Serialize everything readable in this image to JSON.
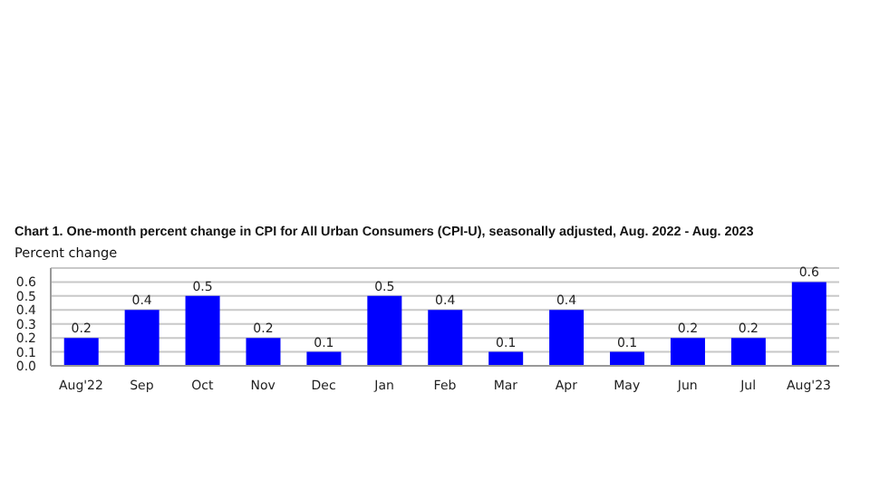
{
  "chart_data": {
    "type": "bar",
    "title": "Chart 1. One-month percent change in CPI for All Urban Consumers (CPI-U), seasonally adjusted, Aug. 2022 - Aug. 2023",
    "subtitle": "Percent change",
    "categories": [
      "Aug'22",
      "Sep",
      "Oct",
      "Nov",
      "Dec",
      "Jan",
      "Feb",
      "Mar",
      "Apr",
      "May",
      "Jun",
      "Jul",
      "Aug'23"
    ],
    "values": [
      0.2,
      0.4,
      0.5,
      0.2,
      0.1,
      0.5,
      0.4,
      0.1,
      0.4,
      0.1,
      0.2,
      0.2,
      0.6
    ],
    "color": "#0000ff",
    "ylim": [
      0,
      0.7
    ],
    "yticks": [
      {
        "value": 0,
        "label": "0.0"
      },
      0.1,
      0.2,
      0.3,
      0.4,
      0.5,
      0.6
    ],
    "grid": "y",
    "data_labels": true
  }
}
